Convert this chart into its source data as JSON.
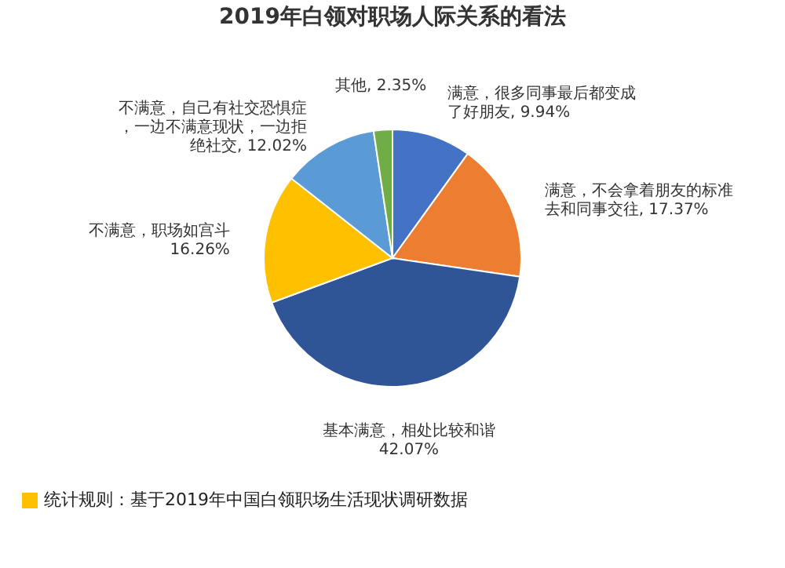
{
  "chart_data": {
    "type": "pie",
    "title": "2019年白领对职场人际关系的看法",
    "categories": [
      "满意，很多同事最后都变成了好朋友",
      "满意，不会拿着朋友的标准去和同事交往",
      "基本满意，相处比较和谐",
      "不满意，职场如宫斗",
      "不满意，自己有社交恐惧症，一边不满意现状，一边拒绝社交",
      "其他"
    ],
    "values": [
      9.94,
      17.37,
      42.07,
      16.26,
      12.02,
      2.35
    ],
    "value_labels": [
      "9.94%",
      "17.37%",
      "42.07%",
      "16.26%",
      "12.02%",
      "2.35%"
    ],
    "colors": [
      "#4472c4",
      "#ed7d31",
      "#2f5597",
      "#ffc000",
      "#5b9bd5",
      "#70ad47"
    ],
    "annotations": [
      "统计规则：基于2019年中国白领职场生活现状调研数据"
    ]
  }
}
